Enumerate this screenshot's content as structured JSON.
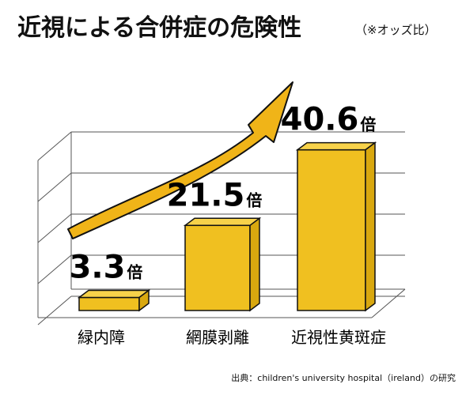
{
  "title": "近視による合併症の危険性",
  "title_note": "（※オッズ比）",
  "source": "出典：children's university hospital（ireland）の研究",
  "value_suffix": "倍",
  "colors": {
    "bar_front": "#f0c020",
    "bar_side": "#d9a80f",
    "bar_top": "#f7d24a",
    "arrow": "#f0b418",
    "outline": "#111111",
    "grid": "#555555"
  },
  "chart_data": {
    "type": "bar",
    "title": "近視による合併症の危険性",
    "subtitle": "（※オッズ比）",
    "categories": [
      "緑内障",
      "網膜剥離",
      "近視性黄斑症"
    ],
    "values": [
      3.3,
      21.5,
      40.6
    ],
    "value_labels": [
      "3.3",
      "21.5",
      "40.6"
    ],
    "unit": "倍",
    "ylim": [
      0,
      45
    ],
    "grid": true,
    "three_d": true,
    "trend_arrow": true
  }
}
